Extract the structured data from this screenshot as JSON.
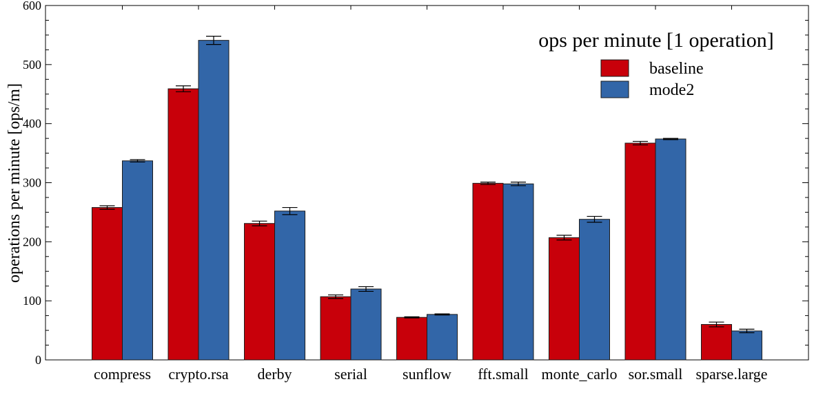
{
  "chart_data": {
    "type": "bar",
    "title": "",
    "xlabel": "",
    "ylabel": "operations per minute [ops/m]",
    "ylim": [
      0,
      600
    ],
    "yticks": [
      0,
      100,
      200,
      300,
      400,
      500,
      600
    ],
    "grid": false,
    "legend": {
      "title": "ops per minute [1 operation]",
      "placement": "top-right"
    },
    "categories": [
      "compress",
      "crypto.rsa",
      "derby",
      "serial",
      "sunflow",
      "fft.small",
      "monte_carlo",
      "sor.small",
      "sparse.large"
    ],
    "series": [
      {
        "name": "baseline",
        "color": "#c8000a",
        "values": [
          258,
          459,
          231,
          107,
          72,
          299,
          207,
          367,
          60
        ],
        "errors": [
          3,
          5,
          4,
          3,
          1,
          2,
          4,
          3,
          4
        ]
      },
      {
        "name": "mode2",
        "color": "#3266a8",
        "values": [
          337,
          541,
          252,
          120,
          77,
          298,
          238,
          374,
          49
        ],
        "errors": [
          2,
          7,
          6,
          4,
          1,
          3,
          5,
          1,
          3
        ]
      }
    ]
  }
}
